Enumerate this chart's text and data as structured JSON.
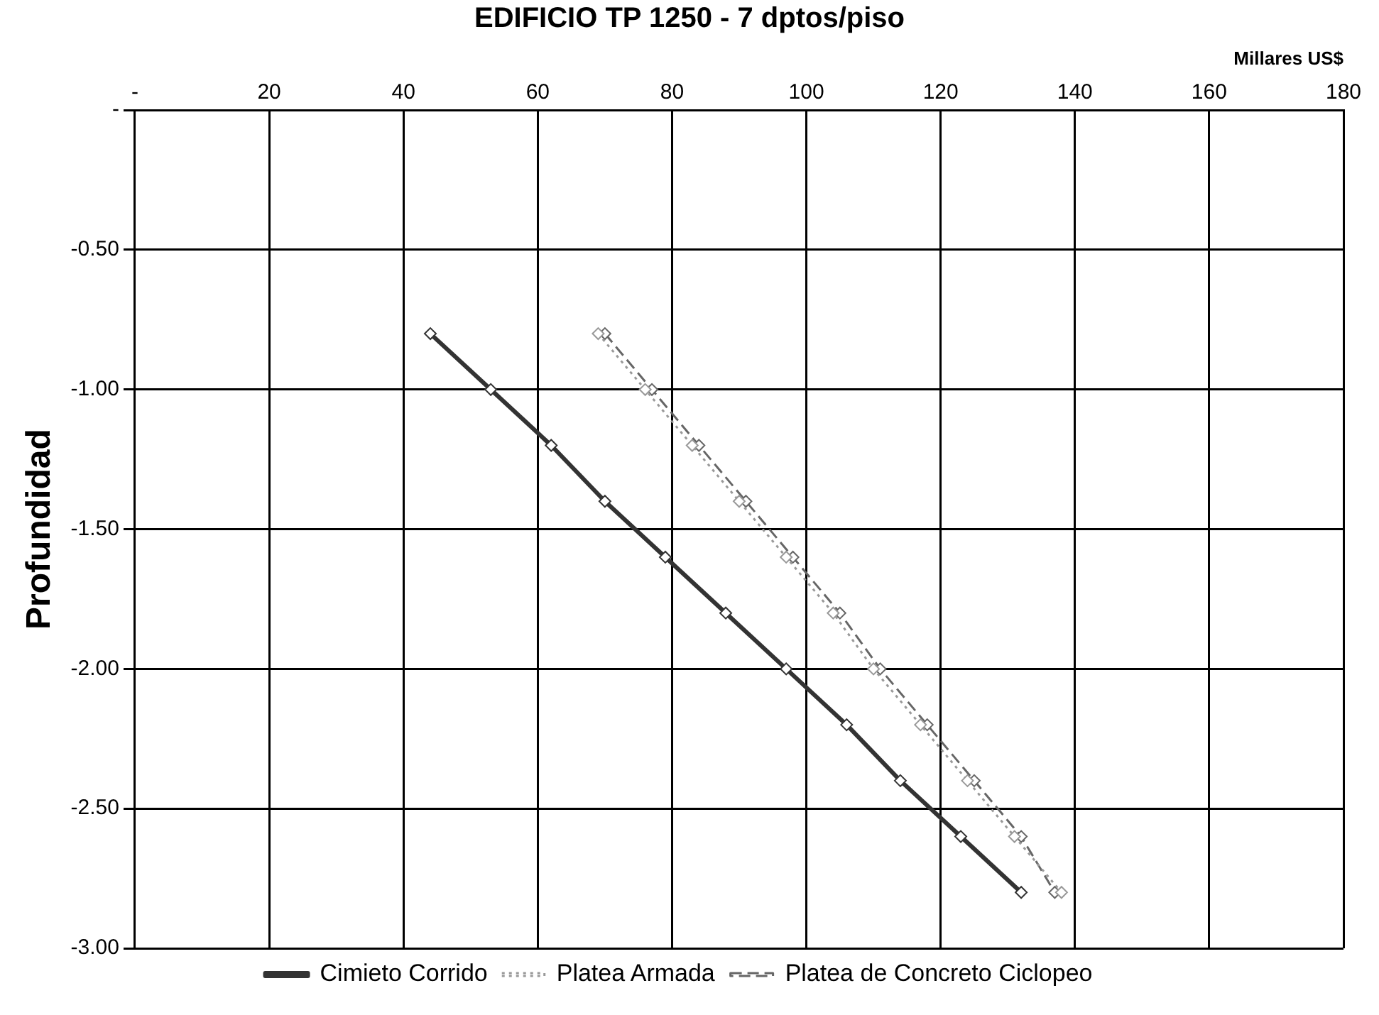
{
  "chart_data": {
    "type": "line",
    "title": "EDIFICIO TP 1250 - 7 dptos/piso",
    "xlabel": "Millares US$",
    "ylabel": "Profundidad",
    "xlim": [
      0,
      180
    ],
    "xticks": [
      {
        "value": 0,
        "label": "-"
      },
      20,
      40,
      60,
      80,
      100,
      120,
      140,
      160,
      180
    ],
    "ylim": [
      -3,
      0
    ],
    "yticks": [
      {
        "value": 0,
        "label": "-"
      },
      {
        "value": -0.5,
        "label": "-0.50"
      },
      {
        "value": -1,
        "label": "-1.00"
      },
      {
        "value": -1.5,
        "label": "-1.50"
      },
      {
        "value": -2,
        "label": "-2.00"
      },
      {
        "value": -2.5,
        "label": "-2.50"
      },
      {
        "value": -3,
        "label": "-3.00"
      }
    ],
    "grid": true,
    "legend": "bottom",
    "marker": "diamond",
    "series": [
      {
        "name": "Cimieto Corrido",
        "color": "#333333",
        "line_style": "solid",
        "x": [
          44,
          53,
          62,
          70,
          79,
          88,
          97,
          106,
          114,
          123,
          132
        ],
        "values": [
          -0.8,
          -1.0,
          -1.2,
          -1.4,
          -1.6,
          -1.8,
          -2.0,
          -2.2,
          -2.4,
          -2.6,
          -2.8
        ]
      },
      {
        "name": "Platea Armada",
        "color": "#999999",
        "line_style": "dotted",
        "x": [
          69,
          76,
          83,
          90,
          97,
          104,
          110,
          117,
          124,
          131,
          138
        ],
        "values": [
          -0.8,
          -1.0,
          -1.2,
          -1.4,
          -1.6,
          -1.8,
          -2.0,
          -2.2,
          -2.4,
          -2.6,
          -2.8
        ]
      },
      {
        "name": "Platea de Concreto Ciclopeo",
        "color": "#666666",
        "line_style": "dashed",
        "x": [
          70,
          77,
          84,
          91,
          98,
          105,
          111,
          118,
          125,
          132,
          137
        ],
        "values": [
          -0.8,
          -1.0,
          -1.2,
          -1.4,
          -1.6,
          -1.8,
          -2.0,
          -2.2,
          -2.4,
          -2.6,
          -2.8
        ]
      }
    ]
  }
}
